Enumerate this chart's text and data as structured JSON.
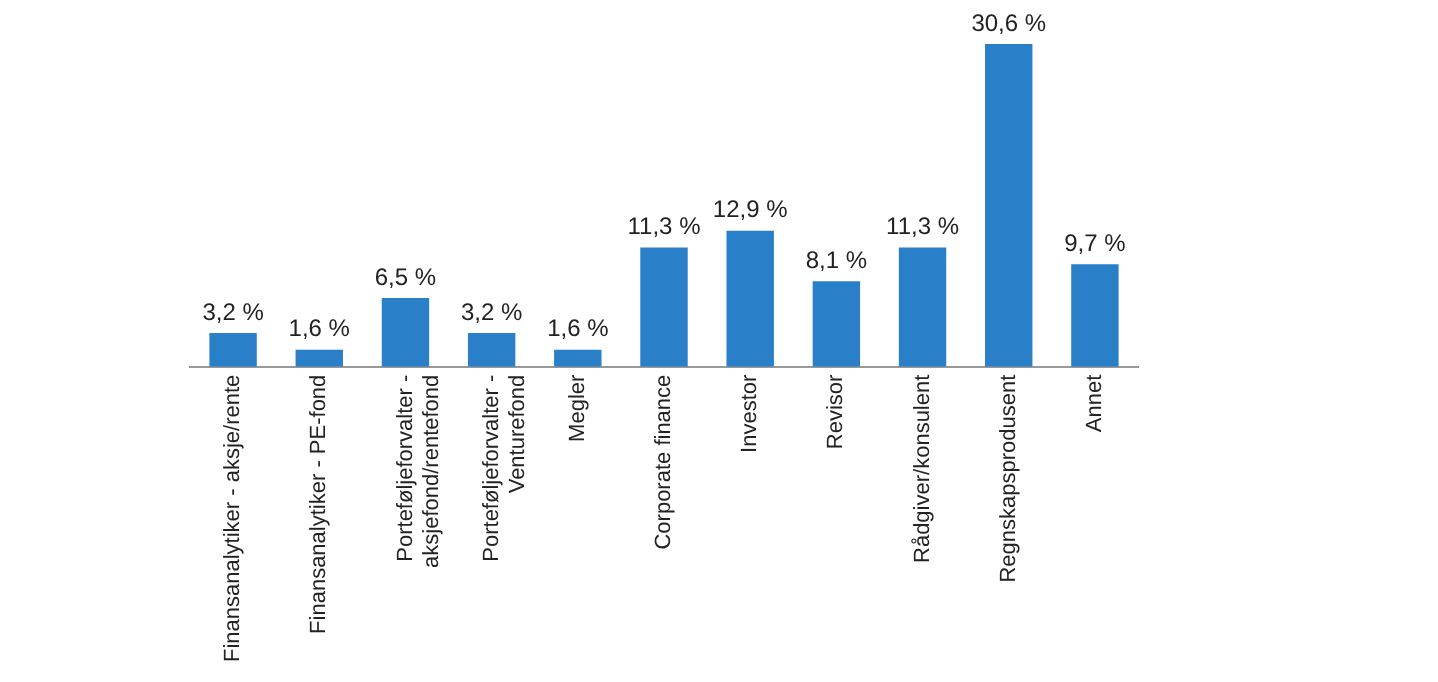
{
  "chart_data": {
    "type": "bar",
    "categories": [
      "Finansanalytiker - aksje/rente",
      "Finansanalytiker - PE-fond",
      "Porteføljeforvalter - aksjefond/rentefond",
      "Porteføljeforvalter - Venturefond",
      "Megler",
      "Corporate finance",
      "Investor",
      "Revisor",
      "Rådgiver/konsulent",
      "Regnskapsprodusent",
      "Annet"
    ],
    "values": [
      3.2,
      1.6,
      6.5,
      3.2,
      1.6,
      11.3,
      12.9,
      8.1,
      11.3,
      30.6,
      9.7
    ],
    "value_labels": [
      "3,2 %",
      "1,6 %",
      "6,5 %",
      "3,2 %",
      "1,6 %",
      "11,3 %",
      "12,9 %",
      "8,1 %",
      "11,3 %",
      "30,6 %",
      "9,7 %"
    ],
    "color": "#2a80c8",
    "grid": false,
    "legend": false
  }
}
